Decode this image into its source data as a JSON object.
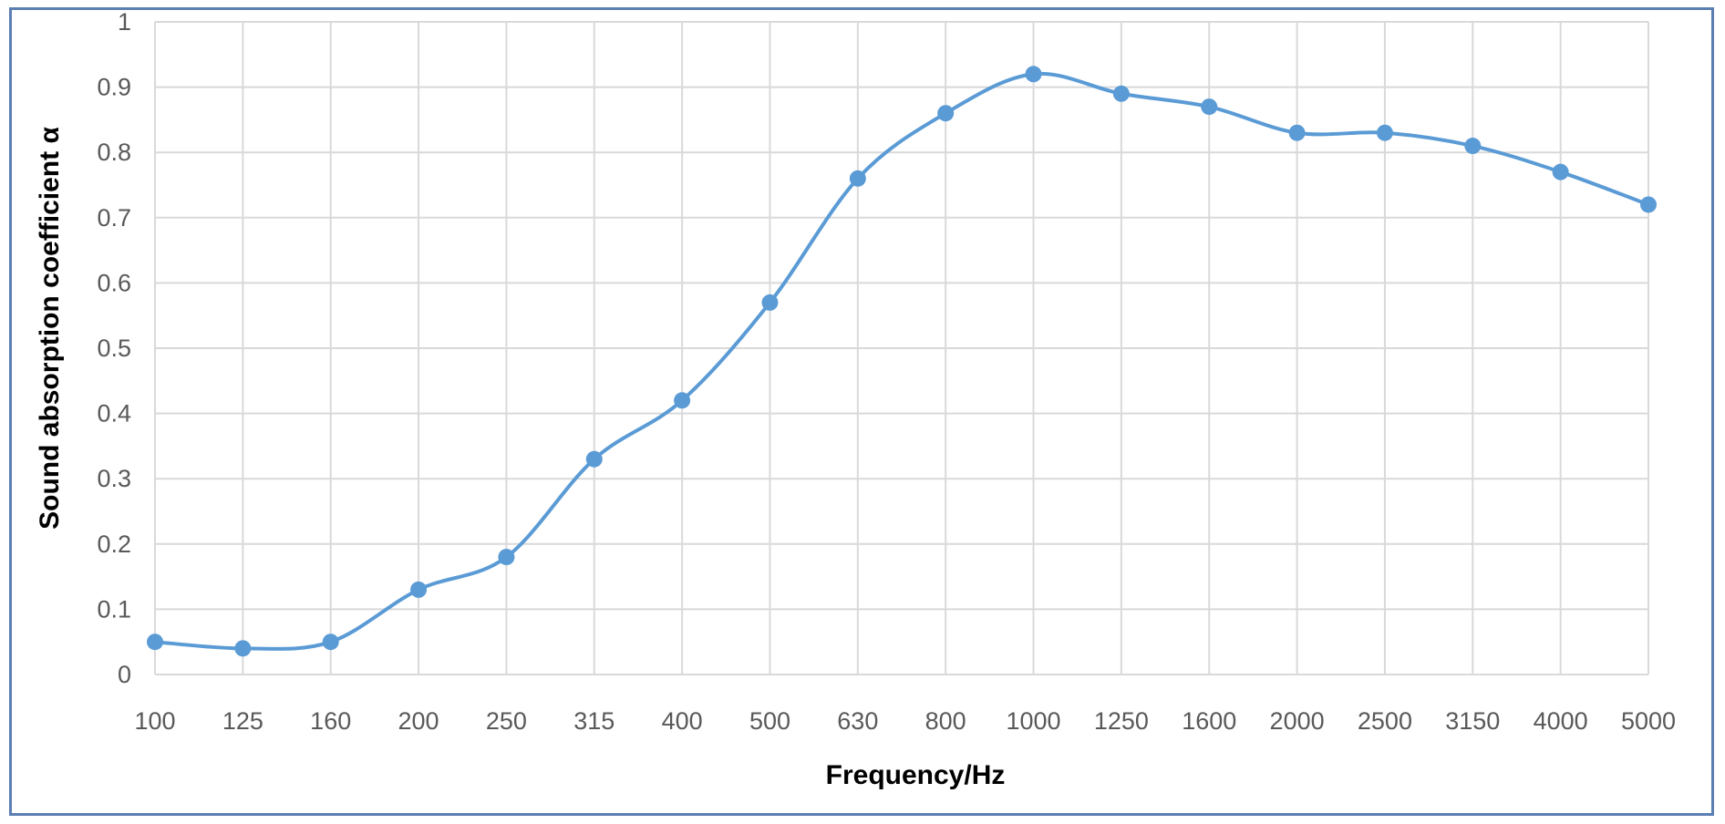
{
  "chart_data": {
    "type": "line",
    "title": "",
    "xlabel": "Frequency/Hz",
    "ylabel": "Sound absorption coefficient α",
    "categories": [
      "100",
      "125",
      "160",
      "200",
      "250",
      "315",
      "400",
      "500",
      "630",
      "800",
      "1000",
      "1250",
      "1600",
      "2000",
      "2500",
      "3150",
      "4000",
      "5000"
    ],
    "yticks": [
      "0",
      "0.1",
      "0.2",
      "0.3",
      "0.4",
      "0.5",
      "0.6",
      "0.7",
      "0.8",
      "0.9",
      "1"
    ],
    "ylim": [
      0,
      1
    ],
    "grid": true,
    "smooth": true,
    "series": [
      {
        "color": "#5b9bd5",
        "values": [
          0.05,
          0.04,
          0.05,
          0.13,
          0.18,
          0.33,
          0.42,
          0.57,
          0.76,
          0.86,
          0.92,
          0.89,
          0.87,
          0.83,
          0.83,
          0.81,
          0.77,
          0.72
        ]
      }
    ]
  },
  "colors": {
    "frame": "#5b7fb3",
    "grid": "#d9d9d9",
    "series": "#5b9bd5",
    "tick_text": "#595959"
  }
}
